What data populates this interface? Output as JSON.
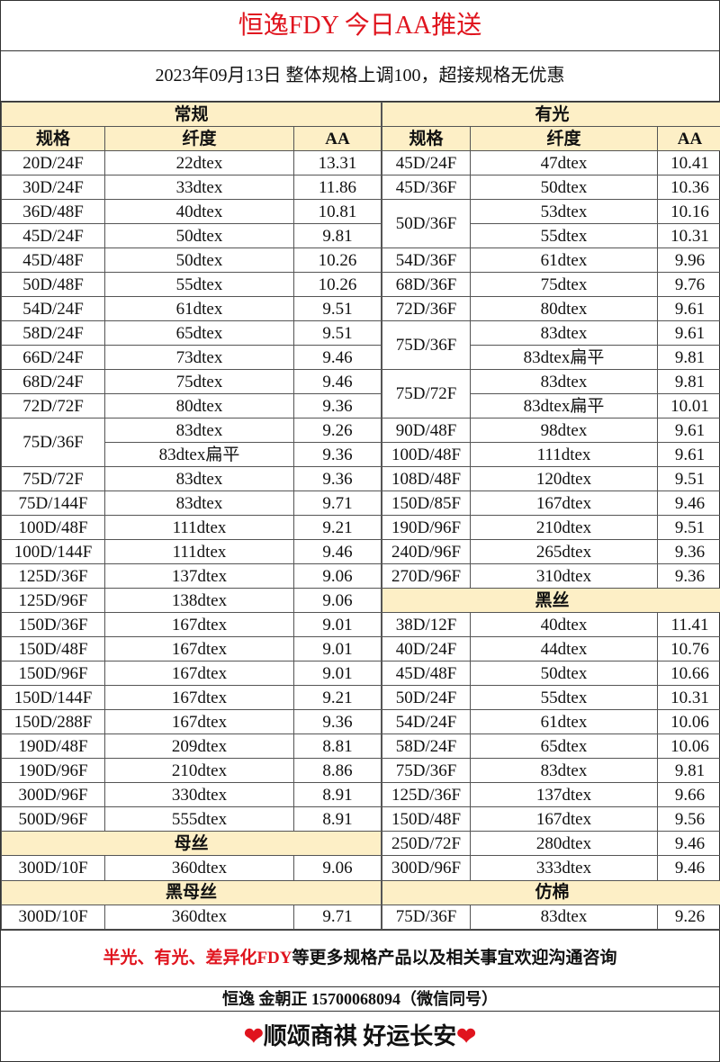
{
  "title": "恒逸FDY  今日AA推送",
  "subtitle": "2023年09月13日  整体规格上调100，超接规格无优惠",
  "columns": {
    "spec": "规格",
    "fineness": "纤度",
    "aa": "AA"
  },
  "left_sections": [
    {
      "title": "常规",
      "groups": [
        {
          "spec": "20D/24F",
          "items": [
            [
              "22dtex",
              "13.31"
            ]
          ]
        },
        {
          "spec": "30D/24F",
          "items": [
            [
              "33dtex",
              "11.86"
            ]
          ]
        },
        {
          "spec": "36D/48F",
          "items": [
            [
              "40dtex",
              "10.81"
            ]
          ]
        },
        {
          "spec": "45D/24F",
          "items": [
            [
              "50dtex",
              "9.81"
            ]
          ]
        },
        {
          "spec": "45D/48F",
          "items": [
            [
              "50dtex",
              "10.26"
            ]
          ]
        },
        {
          "spec": "50D/48F",
          "items": [
            [
              "55dtex",
              "10.26"
            ]
          ]
        },
        {
          "spec": "54D/24F",
          "items": [
            [
              "61dtex",
              "9.51"
            ]
          ]
        },
        {
          "spec": "58D/24F",
          "items": [
            [
              "65dtex",
              "9.51"
            ]
          ]
        },
        {
          "spec": "66D/24F",
          "items": [
            [
              "73dtex",
              "9.46"
            ]
          ]
        },
        {
          "spec": "68D/24F",
          "items": [
            [
              "75dtex",
              "9.46"
            ]
          ]
        },
        {
          "spec": "72D/72F",
          "items": [
            [
              "80dtex",
              "9.36"
            ]
          ]
        },
        {
          "spec": "75D/36F",
          "items": [
            [
              "83dtex",
              "9.26"
            ],
            [
              "83dtex扁平",
              "9.36"
            ]
          ]
        },
        {
          "spec": "75D/72F",
          "items": [
            [
              "83dtex",
              "9.36"
            ]
          ]
        },
        {
          "spec": "75D/144F",
          "items": [
            [
              "83dtex",
              "9.71"
            ]
          ]
        },
        {
          "spec": "100D/48F",
          "items": [
            [
              "111dtex",
              "9.21"
            ]
          ]
        },
        {
          "spec": "100D/144F",
          "items": [
            [
              "111dtex",
              "9.46"
            ]
          ]
        },
        {
          "spec": "125D/36F",
          "items": [
            [
              "137dtex",
              "9.06"
            ]
          ]
        },
        {
          "spec": "125D/96F",
          "items": [
            [
              "138dtex",
              "9.06"
            ]
          ]
        },
        {
          "spec": "150D/36F",
          "items": [
            [
              "167dtex",
              "9.01"
            ]
          ]
        },
        {
          "spec": "150D/48F",
          "items": [
            [
              "167dtex",
              "9.01"
            ]
          ]
        },
        {
          "spec": "150D/96F",
          "items": [
            [
              "167dtex",
              "9.01"
            ]
          ]
        },
        {
          "spec": "150D/144F",
          "items": [
            [
              "167dtex",
              "9.21"
            ]
          ]
        },
        {
          "spec": "150D/288F",
          "items": [
            [
              "167dtex",
              "9.36"
            ]
          ]
        },
        {
          "spec": "190D/48F",
          "items": [
            [
              "209dtex",
              "8.81"
            ]
          ]
        },
        {
          "spec": "190D/96F",
          "items": [
            [
              "210dtex",
              "8.86"
            ]
          ]
        },
        {
          "spec": "300D/96F",
          "items": [
            [
              "330dtex",
              "8.91"
            ]
          ]
        },
        {
          "spec": "500D/96F",
          "items": [
            [
              "555dtex",
              "8.91"
            ]
          ]
        }
      ]
    },
    {
      "title": "母丝",
      "groups": [
        {
          "spec": "300D/10F",
          "items": [
            [
              "360dtex",
              "9.06"
            ]
          ]
        }
      ]
    },
    {
      "title": "黑母丝",
      "groups": [
        {
          "spec": "300D/10F",
          "items": [
            [
              "360dtex",
              "9.71"
            ]
          ]
        }
      ]
    }
  ],
  "right_sections": [
    {
      "title": "有光",
      "groups": [
        {
          "spec": "45D/24F",
          "items": [
            [
              "47dtex",
              "10.41"
            ]
          ]
        },
        {
          "spec": "45D/36F",
          "items": [
            [
              "50dtex",
              "10.36"
            ]
          ]
        },
        {
          "spec": "50D/36F",
          "items": [
            [
              "53dtex",
              "10.16"
            ],
            [
              "55dtex",
              "10.31"
            ]
          ]
        },
        {
          "spec": "54D/36F",
          "items": [
            [
              "61dtex",
              "9.96"
            ]
          ]
        },
        {
          "spec": "68D/36F",
          "items": [
            [
              "75dtex",
              "9.76"
            ]
          ]
        },
        {
          "spec": "72D/36F",
          "items": [
            [
              "80dtex",
              "9.61"
            ]
          ]
        },
        {
          "spec": "75D/36F",
          "items": [
            [
              "83dtex",
              "9.61"
            ],
            [
              "83dtex扁平",
              "9.81"
            ]
          ]
        },
        {
          "spec": "75D/72F",
          "items": [
            [
              "83dtex",
              "9.81"
            ],
            [
              "83dtex扁平",
              "10.01"
            ]
          ]
        },
        {
          "spec": "90D/48F",
          "items": [
            [
              "98dtex",
              "9.61"
            ]
          ]
        },
        {
          "spec": "100D/48F",
          "items": [
            [
              "111dtex",
              "9.61"
            ]
          ]
        },
        {
          "spec": "108D/48F",
          "items": [
            [
              "120dtex",
              "9.51"
            ]
          ]
        },
        {
          "spec": "150D/85F",
          "items": [
            [
              "167dtex",
              "9.46"
            ]
          ]
        },
        {
          "spec": "190D/96F",
          "items": [
            [
              "210dtex",
              "9.51"
            ]
          ]
        },
        {
          "spec": "240D/96F",
          "items": [
            [
              "265dtex",
              "9.36"
            ]
          ]
        },
        {
          "spec": "270D/96F",
          "items": [
            [
              "310dtex",
              "9.36"
            ]
          ]
        }
      ]
    },
    {
      "title": "黑丝",
      "groups": [
        {
          "spec": "38D/12F",
          "items": [
            [
              "40dtex",
              "11.41"
            ]
          ]
        },
        {
          "spec": "40D/24F",
          "items": [
            [
              "44dtex",
              "10.76"
            ]
          ]
        },
        {
          "spec": "45D/48F",
          "items": [
            [
              "50dtex",
              "10.66"
            ]
          ]
        },
        {
          "spec": "50D/24F",
          "items": [
            [
              "55dtex",
              "10.31"
            ]
          ]
        },
        {
          "spec": "54D/24F",
          "items": [
            [
              "61dtex",
              "10.06"
            ]
          ]
        },
        {
          "spec": "58D/24F",
          "items": [
            [
              "65dtex",
              "10.06"
            ]
          ]
        },
        {
          "spec": "75D/36F",
          "items": [
            [
              "83dtex",
              "9.81"
            ]
          ]
        },
        {
          "spec": "125D/36F",
          "items": [
            [
              "137dtex",
              "9.66"
            ]
          ]
        },
        {
          "spec": "150D/48F",
          "items": [
            [
              "167dtex",
              "9.56"
            ]
          ]
        },
        {
          "spec": "250D/72F",
          "items": [
            [
              "280dtex",
              "9.46"
            ]
          ]
        },
        {
          "spec": "300D/96F",
          "items": [
            [
              "333dtex",
              "9.46"
            ]
          ]
        }
      ]
    },
    {
      "title": "仿棉",
      "groups": [
        {
          "spec": "75D/36F",
          "items": [
            [
              "83dtex",
              "9.26"
            ]
          ]
        }
      ]
    }
  ],
  "note": {
    "highlight": "半光、有光、差异化FDY",
    "rest": "等更多规格产品以及相关事宜欢迎沟通咨询"
  },
  "contact": "恒逸  金朝正  15700068094（微信同号）",
  "slogan": {
    "heart_icon": "heart-icon",
    "text": "顺颂商祺  好运长安"
  },
  "colors": {
    "title_red": "#e0141e",
    "header_bg": "#fdefc6"
  }
}
